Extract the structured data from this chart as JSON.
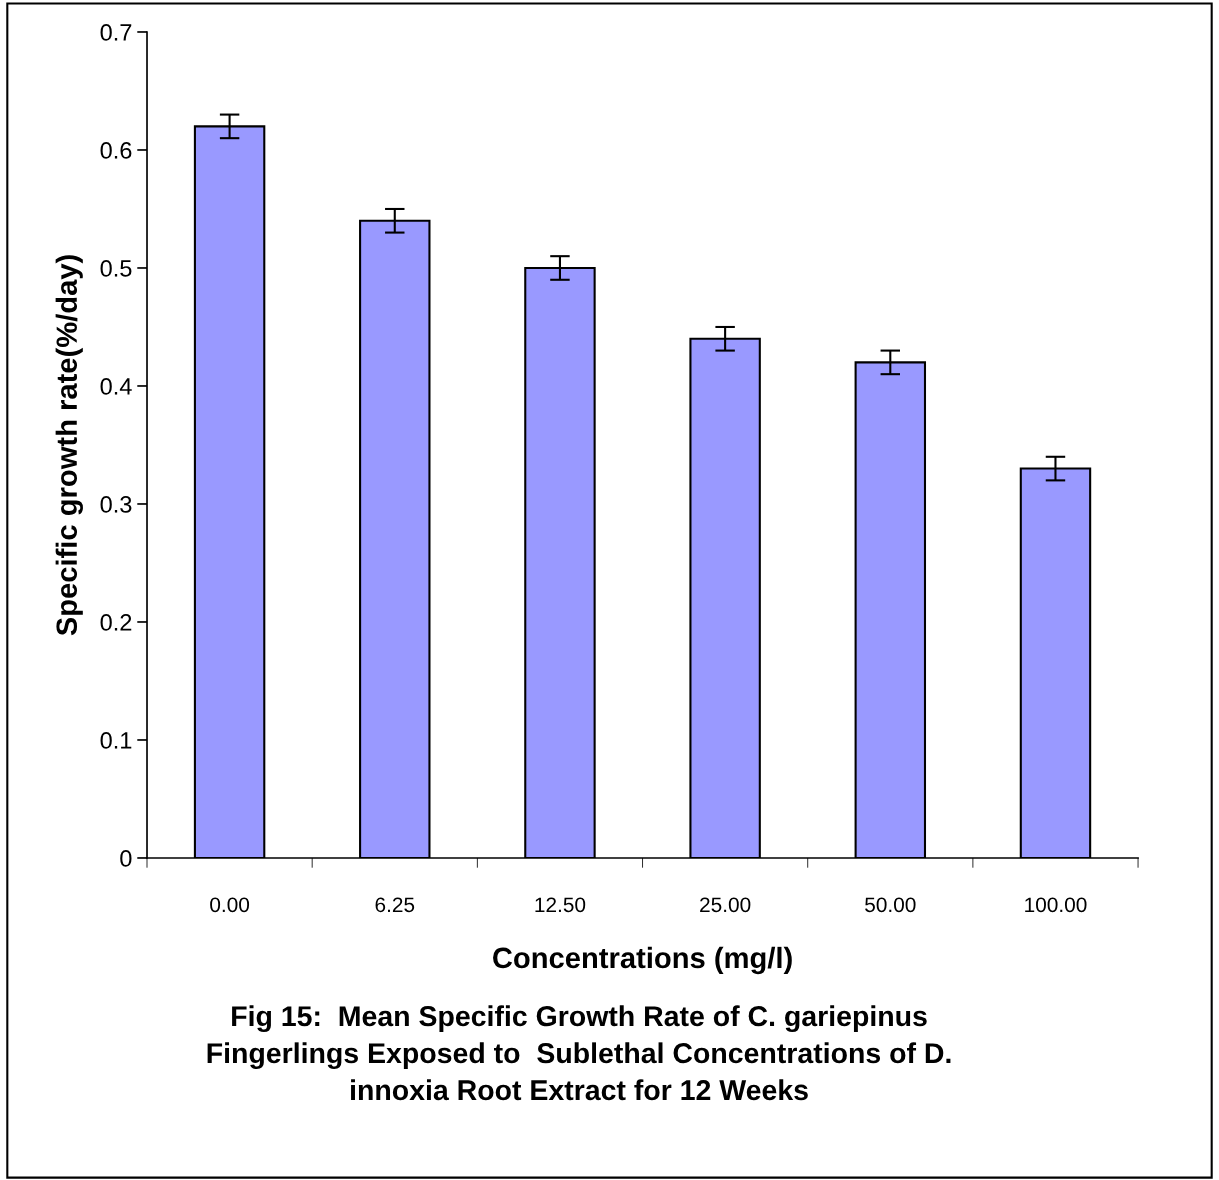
{
  "chart_data": {
    "type": "bar",
    "xlabel": "Concentrations (mg/l)",
    "ylabel": "Specific growth rate(%/day)",
    "categories": [
      "0.00",
      "6.25",
      "12.50",
      "25.00",
      "50.00",
      "100.00"
    ],
    "values": [
      0.62,
      0.54,
      0.5,
      0.44,
      0.42,
      0.33
    ],
    "errors": [
      0.01,
      0.01,
      0.01,
      0.01,
      0.01,
      0.01
    ],
    "color": "#9999ff",
    "ylim": [
      0,
      0.7
    ],
    "yticks": [
      {
        "value": 0,
        "label": "0"
      },
      0.1,
      0.2,
      0.3,
      0.4,
      0.5,
      0.6,
      0.7
    ],
    "grid": false,
    "annotations": [
      "Fig 15:  Mean Specific Growth Rate of C. gariepinus Fingerlings Exposed to  Sublethal Concentrations of D. innoxia Root Extract for 12 Weeks"
    ]
  }
}
